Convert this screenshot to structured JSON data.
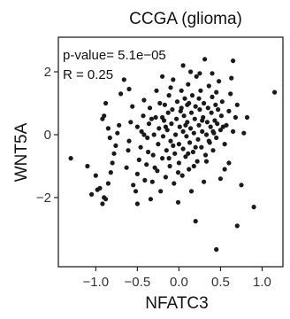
{
  "chart_data": {
    "type": "scatter",
    "title": "CCGA (glioma)",
    "xlabel": "NFATC3",
    "ylabel": "WNT5A",
    "xlim": [
      -1.45,
      1.25
    ],
    "ylim": [
      -4.2,
      3.1
    ],
    "x_ticks": [
      -1.0,
      -0.5,
      0.0,
      0.5,
      1.0
    ],
    "x_tick_labels": [
      "−1.0",
      "−0.5",
      "0.0",
      "0.5",
      "1.0"
    ],
    "y_ticks": [
      -2,
      0,
      2
    ],
    "y_tick_labels": [
      "−2",
      "0",
      "2"
    ],
    "grid": false,
    "point_color": "#1a1a1a",
    "annotations": {
      "pvalue": "p-value= 5.1e−05",
      "r": "R = 0.25"
    },
    "points": [
      [
        -1.3,
        -0.75
      ],
      [
        -1.1,
        -1.0
      ],
      [
        -1.0,
        -1.3
      ],
      [
        -0.95,
        -1.7
      ],
      [
        -1.05,
        -1.9
      ],
      [
        -0.98,
        -1.75
      ],
      [
        -0.9,
        -2.0
      ],
      [
        -0.88,
        -2.05
      ],
      [
        -0.92,
        -2.2
      ],
      [
        -0.85,
        -1.55
      ],
      [
        -0.82,
        -1.2
      ],
      [
        -0.8,
        -0.9
      ],
      [
        -0.78,
        -0.6
      ],
      [
        -0.76,
        -0.35
      ],
      [
        -0.74,
        0.05
      ],
      [
        -0.72,
        0.3
      ],
      [
        -0.9,
        0.6
      ],
      [
        -0.92,
        0.5
      ],
      [
        -0.85,
        0.2
      ],
      [
        -0.83,
        -0.1
      ],
      [
        -0.88,
        1.0
      ],
      [
        -0.7,
        1.3
      ],
      [
        -0.66,
        1.75
      ],
      [
        -0.63,
        -1.05
      ],
      [
        -0.61,
        -0.5
      ],
      [
        -0.6,
        -0.2
      ],
      [
        -0.58,
        0.4
      ],
      [
        -0.56,
        0.9
      ],
      [
        -0.55,
        -1.6
      ],
      [
        -0.52,
        -1.8
      ],
      [
        -0.5,
        -2.2
      ],
      [
        -0.5,
        -1.25
      ],
      [
        -0.48,
        -0.8
      ],
      [
        -0.46,
        -0.4
      ],
      [
        -0.45,
        0.1
      ],
      [
        -0.43,
        0.6
      ],
      [
        -0.42,
        1.1
      ],
      [
        -0.41,
        -1.45
      ],
      [
        -0.39,
        -0.95
      ],
      [
        -0.38,
        -0.1
      ],
      [
        -0.36,
        0.35
      ],
      [
        -0.35,
        0.85
      ],
      [
        -0.34,
        -2.05
      ],
      [
        -0.32,
        -1.5
      ],
      [
        -0.31,
        -0.65
      ],
      [
        -0.3,
        0.0
      ],
      [
        -0.28,
        0.55
      ],
      [
        -0.27,
        1.4
      ],
      [
        -0.26,
        -1.15
      ],
      [
        -0.25,
        -0.3
      ],
      [
        -0.24,
        0.2
      ],
      [
        -0.23,
        1.0
      ],
      [
        -0.22,
        -1.8
      ],
      [
        -0.2,
        -0.75
      ],
      [
        -0.19,
        -0.05
      ],
      [
        -0.18,
        0.45
      ],
      [
        -0.17,
        0.95
      ],
      [
        -0.16,
        -1.35
      ],
      [
        -0.15,
        -0.5
      ],
      [
        -0.14,
        0.15
      ],
      [
        -0.13,
        0.7
      ],
      [
        -0.12,
        1.25
      ],
      [
        -0.11,
        -1.0
      ],
      [
        -0.1,
        -0.2
      ],
      [
        -0.09,
        0.35
      ],
      [
        -0.08,
        0.8
      ],
      [
        -0.07,
        1.75
      ],
      [
        -0.06,
        -1.55
      ],
      [
        -0.05,
        -0.6
      ],
      [
        -0.04,
        0.0
      ],
      [
        -0.03,
        0.5
      ],
      [
        -0.02,
        1.05
      ],
      [
        -0.01,
        -2.15
      ],
      [
        0.0,
        -0.9
      ],
      [
        0.0,
        -0.3
      ],
      [
        0.01,
        0.25
      ],
      [
        0.02,
        0.75
      ],
      [
        0.03,
        1.4
      ],
      [
        0.04,
        -1.3
      ],
      [
        0.05,
        -0.45
      ],
      [
        0.05,
        0.1
      ],
      [
        0.06,
        0.6
      ],
      [
        0.07,
        1.15
      ],
      [
        0.08,
        -0.7
      ],
      [
        0.09,
        -0.05
      ],
      [
        0.1,
        0.4
      ],
      [
        0.1,
        0.95
      ],
      [
        0.11,
        1.6
      ],
      [
        0.12,
        -1.1
      ],
      [
        0.13,
        -0.25
      ],
      [
        0.14,
        0.2
      ],
      [
        0.15,
        0.7
      ],
      [
        0.16,
        1.25
      ],
      [
        0.17,
        -0.55
      ],
      [
        0.18,
        0.05
      ],
      [
        0.19,
        0.5
      ],
      [
        0.2,
        0.9
      ],
      [
        0.21,
        1.85
      ],
      [
        0.22,
        -0.85
      ],
      [
        0.23,
        -0.15
      ],
      [
        0.24,
        0.3
      ],
      [
        0.25,
        0.8
      ],
      [
        0.26,
        1.4
      ],
      [
        0.27,
        -0.4
      ],
      [
        0.28,
        0.1
      ],
      [
        0.29,
        0.55
      ],
      [
        0.3,
        1.0
      ],
      [
        0.31,
        2.4
      ],
      [
        0.32,
        -0.65
      ],
      [
        0.33,
        0.0
      ],
      [
        0.34,
        0.4
      ],
      [
        0.35,
        0.85
      ],
      [
        0.36,
        1.55
      ],
      [
        0.37,
        -0.25
      ],
      [
        0.38,
        0.25
      ],
      [
        0.39,
        0.7
      ],
      [
        0.4,
        1.2
      ],
      [
        0.41,
        -0.5
      ],
      [
        0.42,
        0.05
      ],
      [
        0.43,
        0.45
      ],
      [
        0.44,
        0.95
      ],
      [
        0.45,
        -0.1
      ],
      [
        0.46,
        0.35
      ],
      [
        0.47,
        0.8
      ],
      [
        0.48,
        1.7
      ],
      [
        0.5,
        0.15
      ],
      [
        0.51,
        0.6
      ],
      [
        0.52,
        1.05
      ],
      [
        0.55,
        -0.3
      ],
      [
        0.57,
        0.3
      ],
      [
        0.6,
        0.75
      ],
      [
        0.62,
        1.3
      ],
      [
        0.65,
        0.1
      ],
      [
        0.68,
        0.55
      ],
      [
        0.7,
        0.95
      ],
      [
        -0.2,
        1.85
      ],
      [
        0.05,
        2.2
      ],
      [
        0.14,
        2.0
      ],
      [
        0.4,
        1.95
      ],
      [
        0.63,
        1.8
      ],
      [
        -0.6,
        1.45
      ],
      [
        0.25,
        1.95
      ],
      [
        0.6,
        -0.9
      ],
      [
        0.5,
        -1.4
      ],
      [
        0.55,
        -1.1
      ],
      [
        0.3,
        -1.5
      ],
      [
        0.15,
        -1.8
      ],
      [
        0.75,
        -1.6
      ],
      [
        0.9,
        -2.3
      ],
      [
        0.7,
        -2.9
      ],
      [
        0.2,
        -2.75
      ],
      [
        0.45,
        -3.65
      ],
      [
        0.65,
        2.35
      ],
      [
        0.82,
        0.55
      ],
      [
        0.78,
        0.05
      ],
      [
        1.15,
        1.35
      ],
      [
        -0.5,
        0.25
      ],
      [
        -0.37,
        -0.55
      ],
      [
        -0.12,
        -0.75
      ],
      [
        0.08,
        0.3
      ],
      [
        0.33,
        -0.85
      ],
      [
        -0.2,
        0.55
      ],
      [
        0.45,
        1.35
      ],
      [
        -0.01,
        -1.2
      ],
      [
        -0.42,
        0.0
      ],
      [
        0.12,
        1.0
      ],
      [
        0.36,
        -0.2
      ],
      [
        -0.29,
        -1.05
      ],
      [
        0.2,
        -0.4
      ],
      [
        0.03,
        0.85
      ],
      [
        -0.16,
        0.25
      ],
      [
        0.28,
        0.45
      ],
      [
        -0.07,
        -0.35
      ],
      [
        0.41,
        0.1
      ],
      [
        0.11,
        -0.6
      ],
      [
        -0.33,
        0.5
      ],
      [
        0.24,
        1.15
      ],
      [
        -0.1,
        1.5
      ],
      [
        0.53,
        0.25
      ],
      [
        0.18,
        -1.0
      ]
    ]
  }
}
